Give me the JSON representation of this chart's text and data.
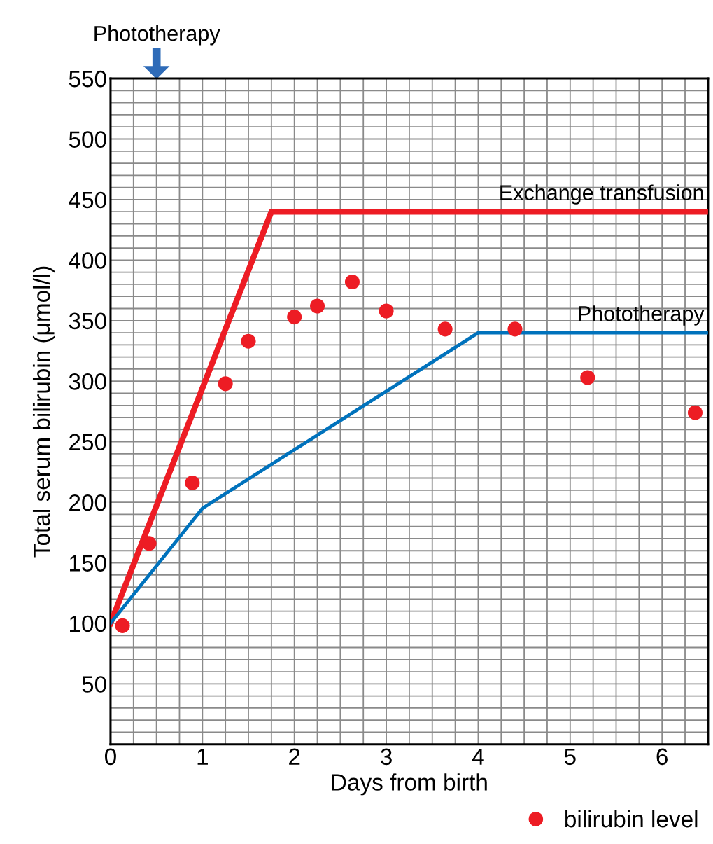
{
  "chart_data": {
    "type": "line",
    "xlabel": "Days from birth",
    "ylabel": "Total serum bilirubin (μmol/l)",
    "xlim": [
      0,
      6.5
    ],
    "xticks": [
      0,
      1,
      2,
      3,
      4,
      5,
      6
    ],
    "ylim": [
      0,
      550
    ],
    "yticks": [
      50,
      100,
      150,
      200,
      250,
      300,
      350,
      400,
      450,
      500,
      550
    ],
    "grid": true,
    "legend": "bottom right",
    "series": [
      {
        "name": "Exchange transfusion",
        "color": "#ed1c24",
        "x": [
          0,
          1.75,
          6.5
        ],
        "values": [
          100,
          440,
          440
        ]
      },
      {
        "name": "Phototherapy",
        "color": "#0072bc",
        "x": [
          0,
          1,
          4,
          6.5
        ],
        "values": [
          100,
          195,
          340,
          340
        ]
      },
      {
        "name": "bilirubin level",
        "type": "scatter",
        "color": "#ed1c24",
        "marker": "circle",
        "x": [
          0.13,
          0.42,
          0.89,
          1.25,
          1.5,
          2.0,
          2.25,
          2.63,
          3.0,
          3.64,
          4.4,
          5.19,
          6.36
        ],
        "values": [
          98,
          166,
          216,
          298,
          333,
          353,
          362,
          382,
          358,
          343,
          343,
          303,
          274
        ]
      }
    ],
    "annotations": [
      "Phototherapy"
    ]
  }
}
